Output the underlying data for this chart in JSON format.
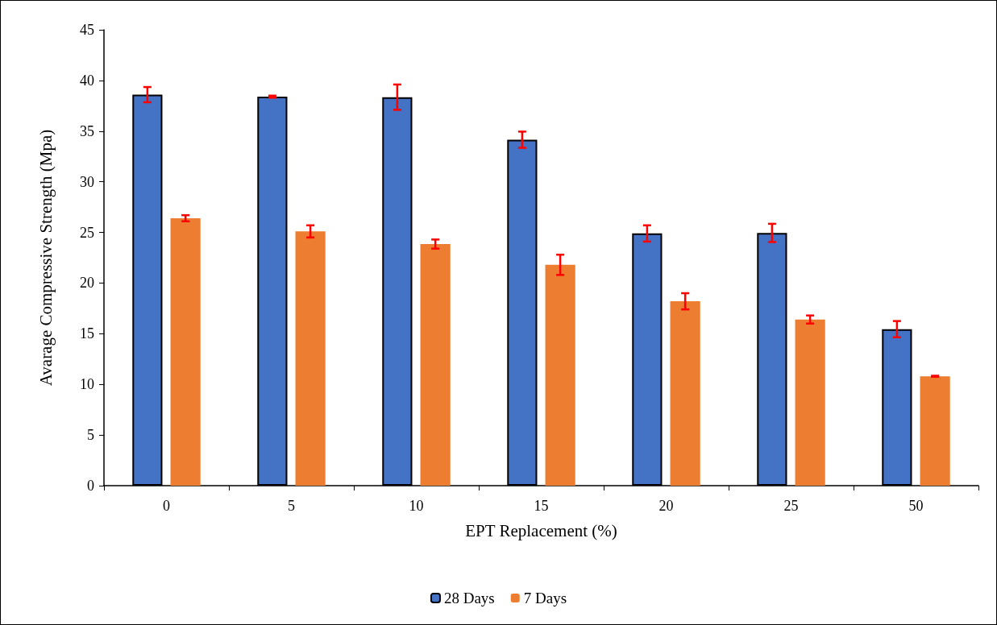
{
  "chart_data": {
    "type": "bar",
    "xlabel": "EPT Replacement (%)",
    "ylabel": "Avarage Compressive Strength (Mpa)",
    "categories": [
      "0",
      "5",
      "10",
      "15",
      "20",
      "25",
      "50"
    ],
    "series": [
      {
        "name": "28 Days",
        "color": "#4472c4",
        "values": [
          38.6,
          38.4,
          38.35,
          34.15,
          24.9,
          24.95,
          15.45
        ],
        "errors": [
          0.75,
          0.1,
          1.25,
          0.8,
          0.8,
          0.9,
          0.8
        ]
      },
      {
        "name": "7 Days",
        "color": "#ed7d31",
        "values": [
          26.4,
          25.1,
          23.85,
          21.8,
          18.2,
          16.4,
          10.8
        ],
        "errors": [
          0.3,
          0.6,
          0.45,
          1.0,
          0.8,
          0.4,
          0.05
        ]
      }
    ],
    "ylim": [
      0,
      45
    ],
    "yticks": [
      0,
      5,
      10,
      15,
      20,
      25,
      30,
      35,
      40,
      45
    ],
    "grid": false,
    "legend": "bottom"
  }
}
